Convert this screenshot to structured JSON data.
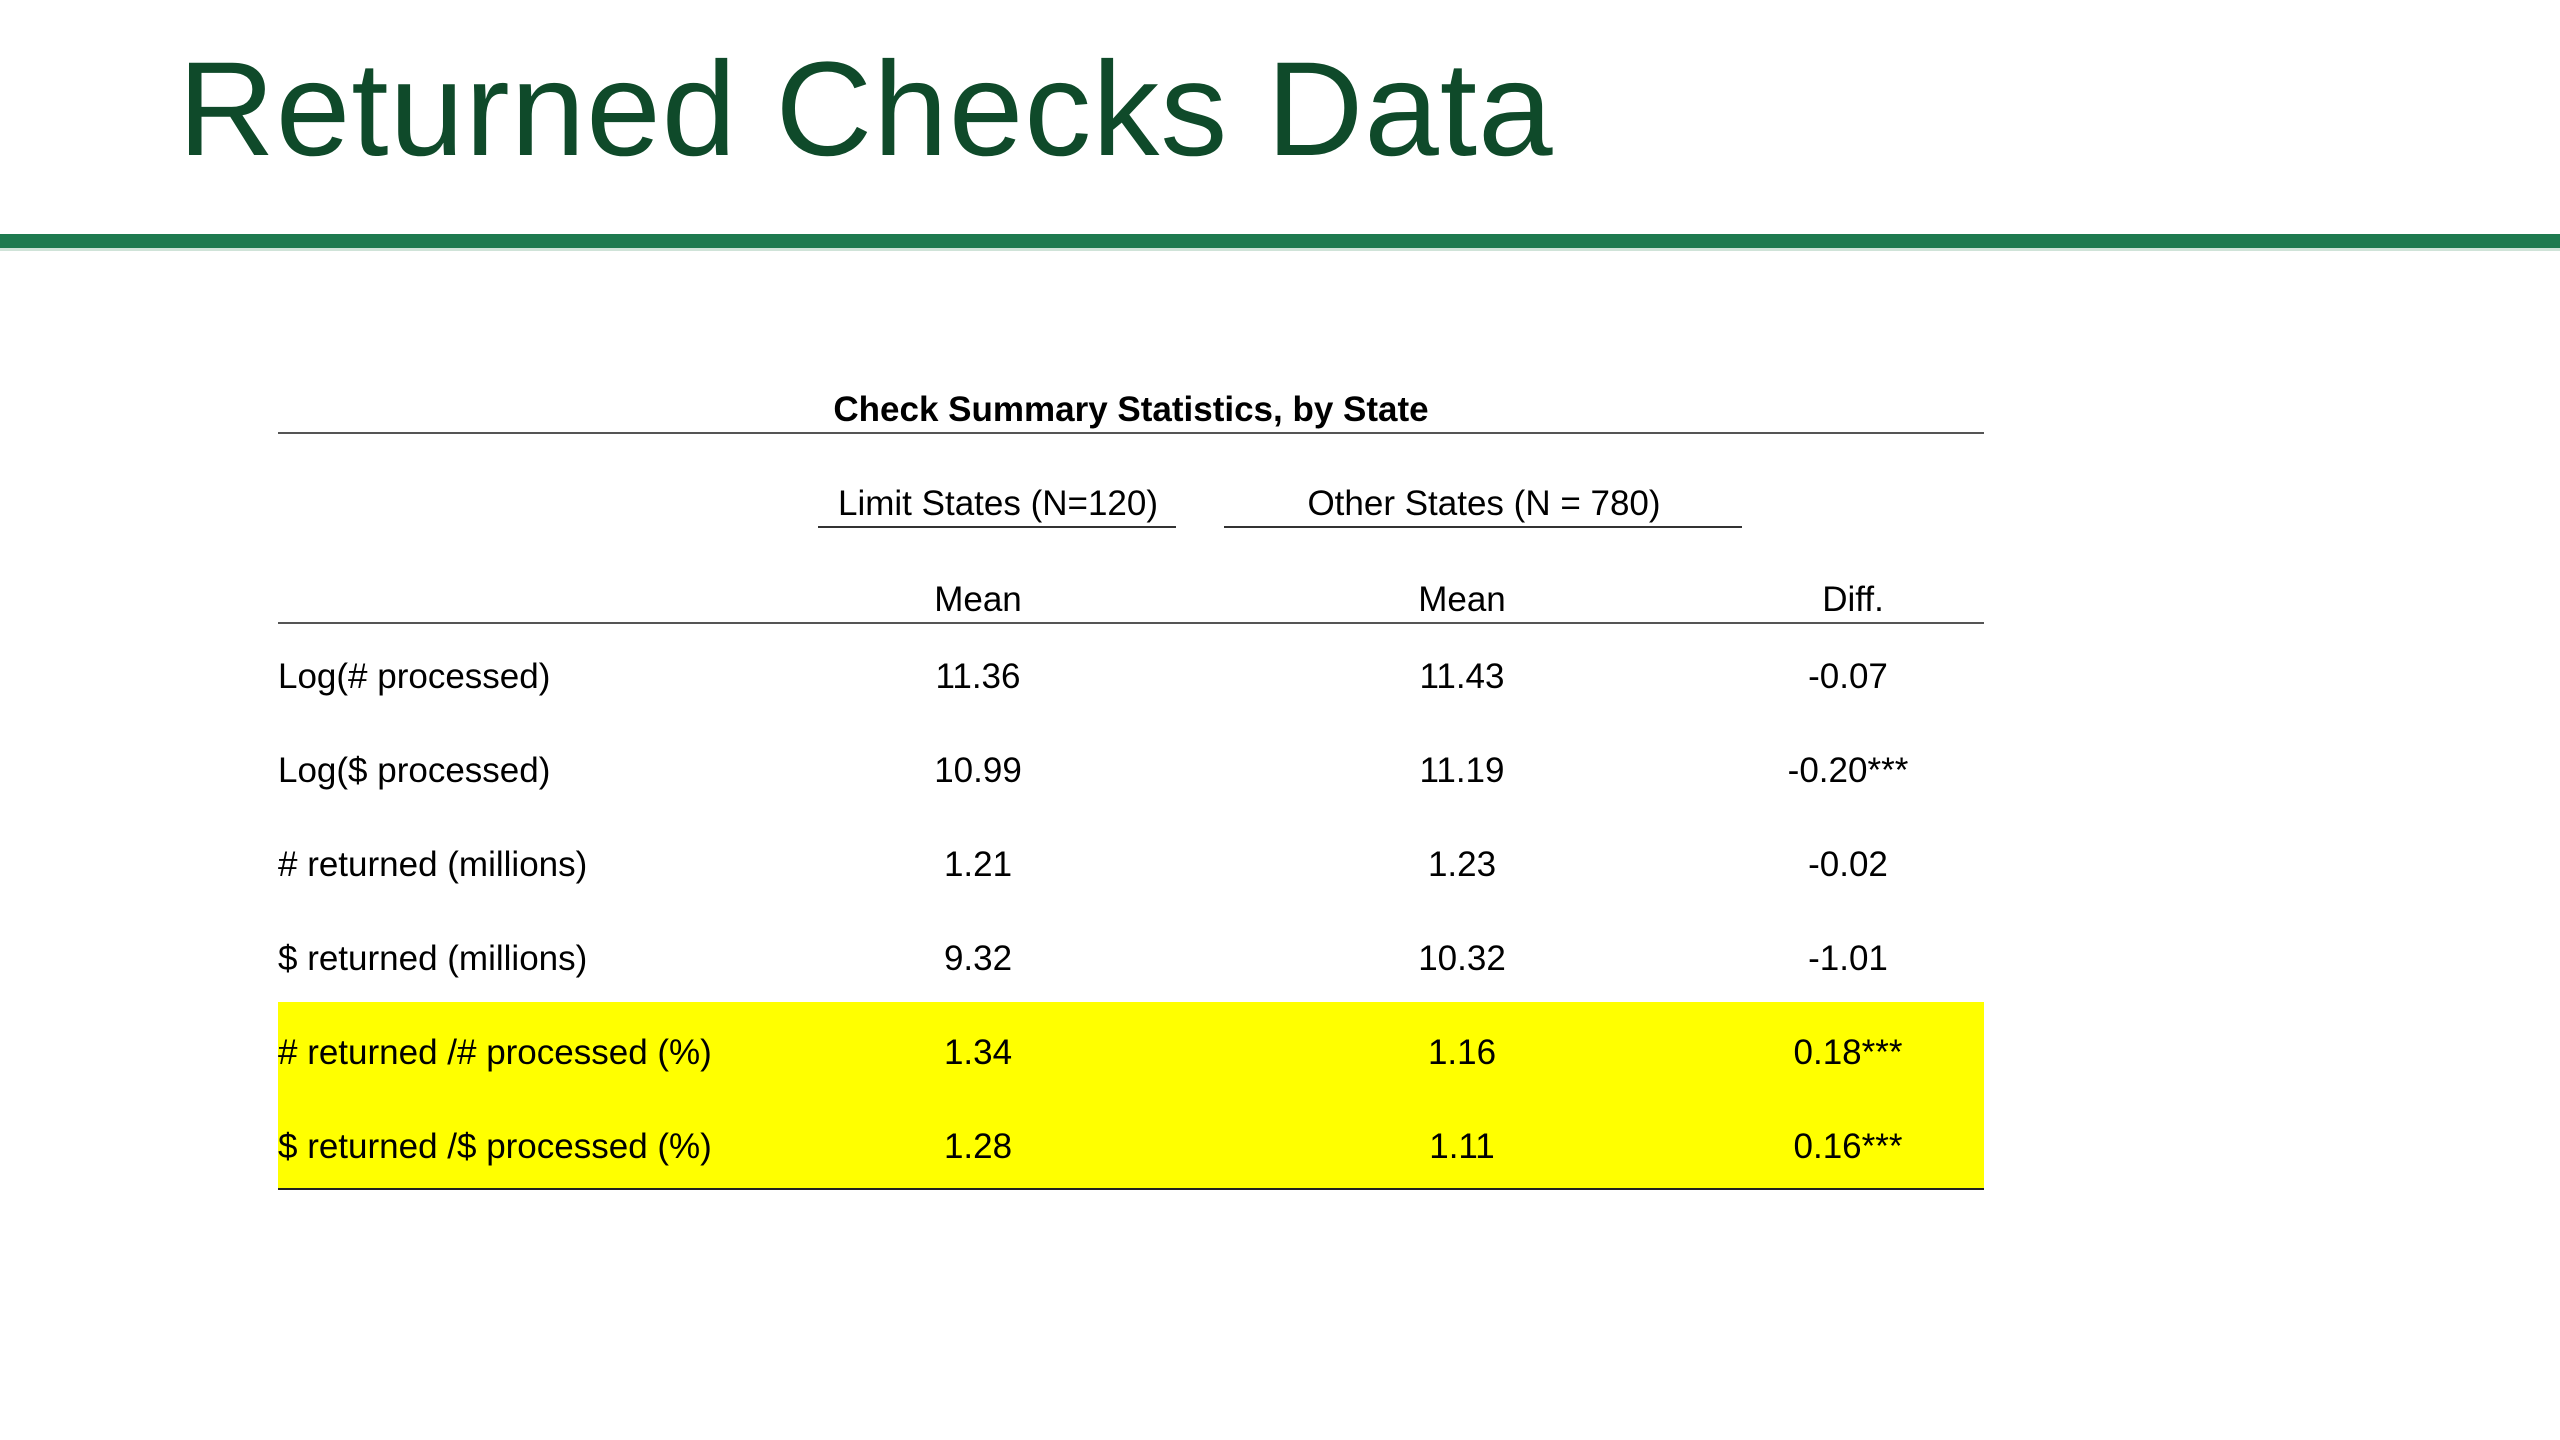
{
  "slide": {
    "title": "Returned Checks Data",
    "accent_color": "#1e7a4f",
    "title_color": "#0f4a2a",
    "highlight_color": "#ffff00"
  },
  "table": {
    "caption": "Check Summary Statistics, by State",
    "groups": [
      {
        "label": "Limit States (N=120)"
      },
      {
        "label": "Other States (N = 780)"
      }
    ],
    "columns": [
      "Mean",
      "Mean",
      "Diff."
    ],
    "rows": [
      {
        "label": "Log(# processed)",
        "v1": "11.36",
        "v2": "11.43",
        "diff": "-0.07",
        "highlighted": false
      },
      {
        "label": "Log($ processed)",
        "v1": "10.99",
        "v2": "11.19",
        "diff": "-0.20***",
        "highlighted": false
      },
      {
        "label": "# returned (millions)",
        "v1": "1.21",
        "v2": "1.23",
        "diff": "-0.02",
        "highlighted": false
      },
      {
        "label": "$ returned (millions)",
        "v1": "9.32",
        "v2": "10.32",
        "diff": "-1.01",
        "highlighted": false
      },
      {
        "label": "# returned /# processed (%)",
        "v1": "1.34",
        "v2": "1.16",
        "diff": "0.18***",
        "highlighted": true
      },
      {
        "label": "$ returned /$ processed (%)",
        "v1": "1.28",
        "v2": "1.11",
        "diff": "0.16***",
        "highlighted": true
      }
    ]
  }
}
